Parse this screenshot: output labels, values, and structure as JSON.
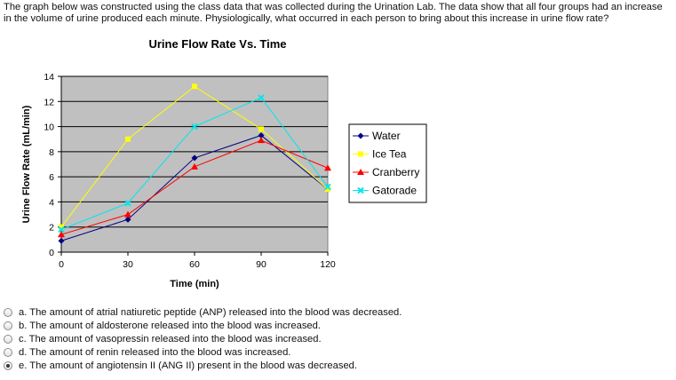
{
  "question": {
    "text": "The graph below was constructed using the class data that was collected during the Urination Lab. The data show that all four groups had an increase in the volume of urine produced each minute. Physiologically, what occurred in each person to bring about this increase in urine flow rate?"
  },
  "chart_data": {
    "type": "line",
    "title": "Urine Flow Rate Vs. Time",
    "xlabel": "Time (min)",
    "ylabel": "Urine Flow Rate (mL/min)",
    "x": [
      0,
      30,
      60,
      90,
      120
    ],
    "xlim": [
      0,
      120
    ],
    "ylim": [
      0,
      14
    ],
    "xticks": [
      "0",
      "30",
      "60",
      "90",
      "120"
    ],
    "yticks": [
      "0",
      "2",
      "4",
      "6",
      "8",
      "10",
      "12",
      "14"
    ],
    "grid": true,
    "legend_position": "right",
    "plot_background": "#c0c0c0",
    "series": [
      {
        "name": "Water",
        "color": "#000080",
        "marker": "diamond",
        "values": [
          0.9,
          2.6,
          7.5,
          9.3,
          5.0
        ]
      },
      {
        "name": "Ice Tea",
        "color": "#ffff00",
        "marker": "square",
        "values": [
          2.0,
          9.0,
          13.2,
          9.8,
          5.0
        ]
      },
      {
        "name": "Cranberry",
        "color": "#ff0000",
        "marker": "triangle",
        "values": [
          1.4,
          3.0,
          6.8,
          8.9,
          6.7
        ]
      },
      {
        "name": "Gatorade",
        "color": "#00e5ee",
        "marker": "x",
        "values": [
          1.8,
          3.9,
          10.0,
          12.3,
          5.2
        ]
      }
    ]
  },
  "options": [
    {
      "label": "a. The amount of atrial natiuretic peptide (ANP) released into the blood was decreased.",
      "selected": false
    },
    {
      "label": "b. The amount of aldosterone released into the blood was increased.",
      "selected": false
    },
    {
      "label": "c. The amount of vasopressin released into the blood was increased.",
      "selected": false
    },
    {
      "label": "d. The amount of renin released into the blood was increased.",
      "selected": false
    },
    {
      "label": "e. The amount of angiotensin II (ANG II) present in the blood was decreased.",
      "selected": true
    }
  ]
}
